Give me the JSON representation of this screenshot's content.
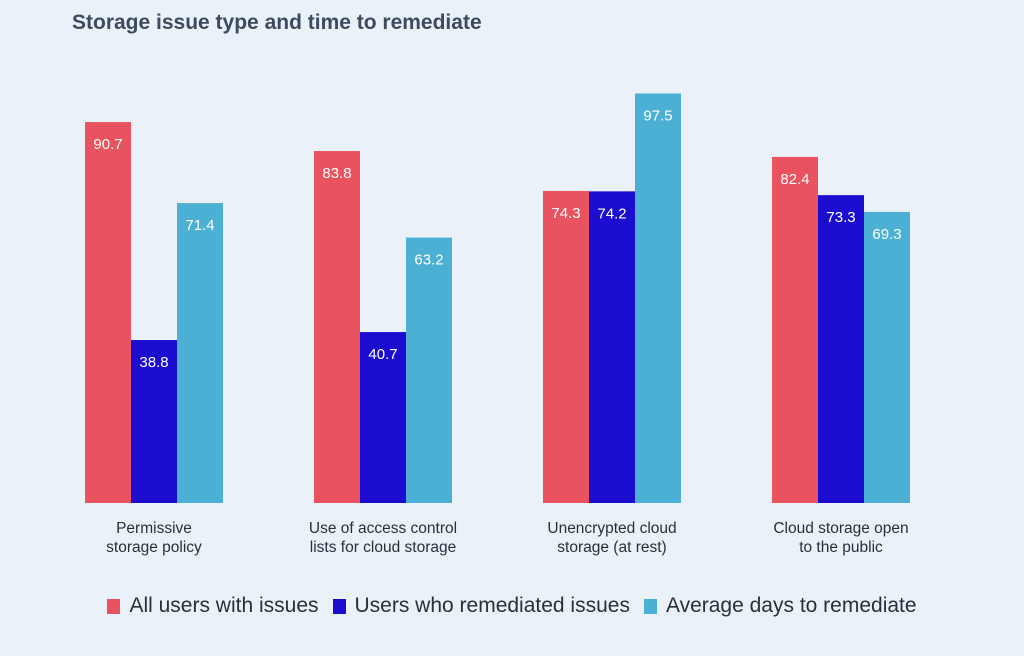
{
  "chart_data": {
    "type": "bar",
    "title": "Storage issue type and time to remediate",
    "categories": [
      [
        "Permissive",
        "storage policy"
      ],
      [
        "Use of access control",
        "lists for cloud storage"
      ],
      [
        "Unencrypted cloud",
        "storage (at rest)"
      ],
      [
        "Cloud storage open",
        "to the public"
      ]
    ],
    "series": [
      {
        "name": "All users with issues",
        "color": "#e9525f",
        "values": [
          90.7,
          83.8,
          74.3,
          82.4
        ]
      },
      {
        "name": "Users who remediated issues",
        "color": "#1c0ccf",
        "values": [
          38.8,
          40.7,
          74.2,
          73.3
        ]
      },
      {
        "name": "Average days to remediate",
        "color": "#4bb0d3",
        "values": [
          71.4,
          63.2,
          97.5,
          69.3
        ]
      }
    ],
    "ylim": [
      0,
      100
    ],
    "grid": false,
    "legend_position": "bottom"
  }
}
